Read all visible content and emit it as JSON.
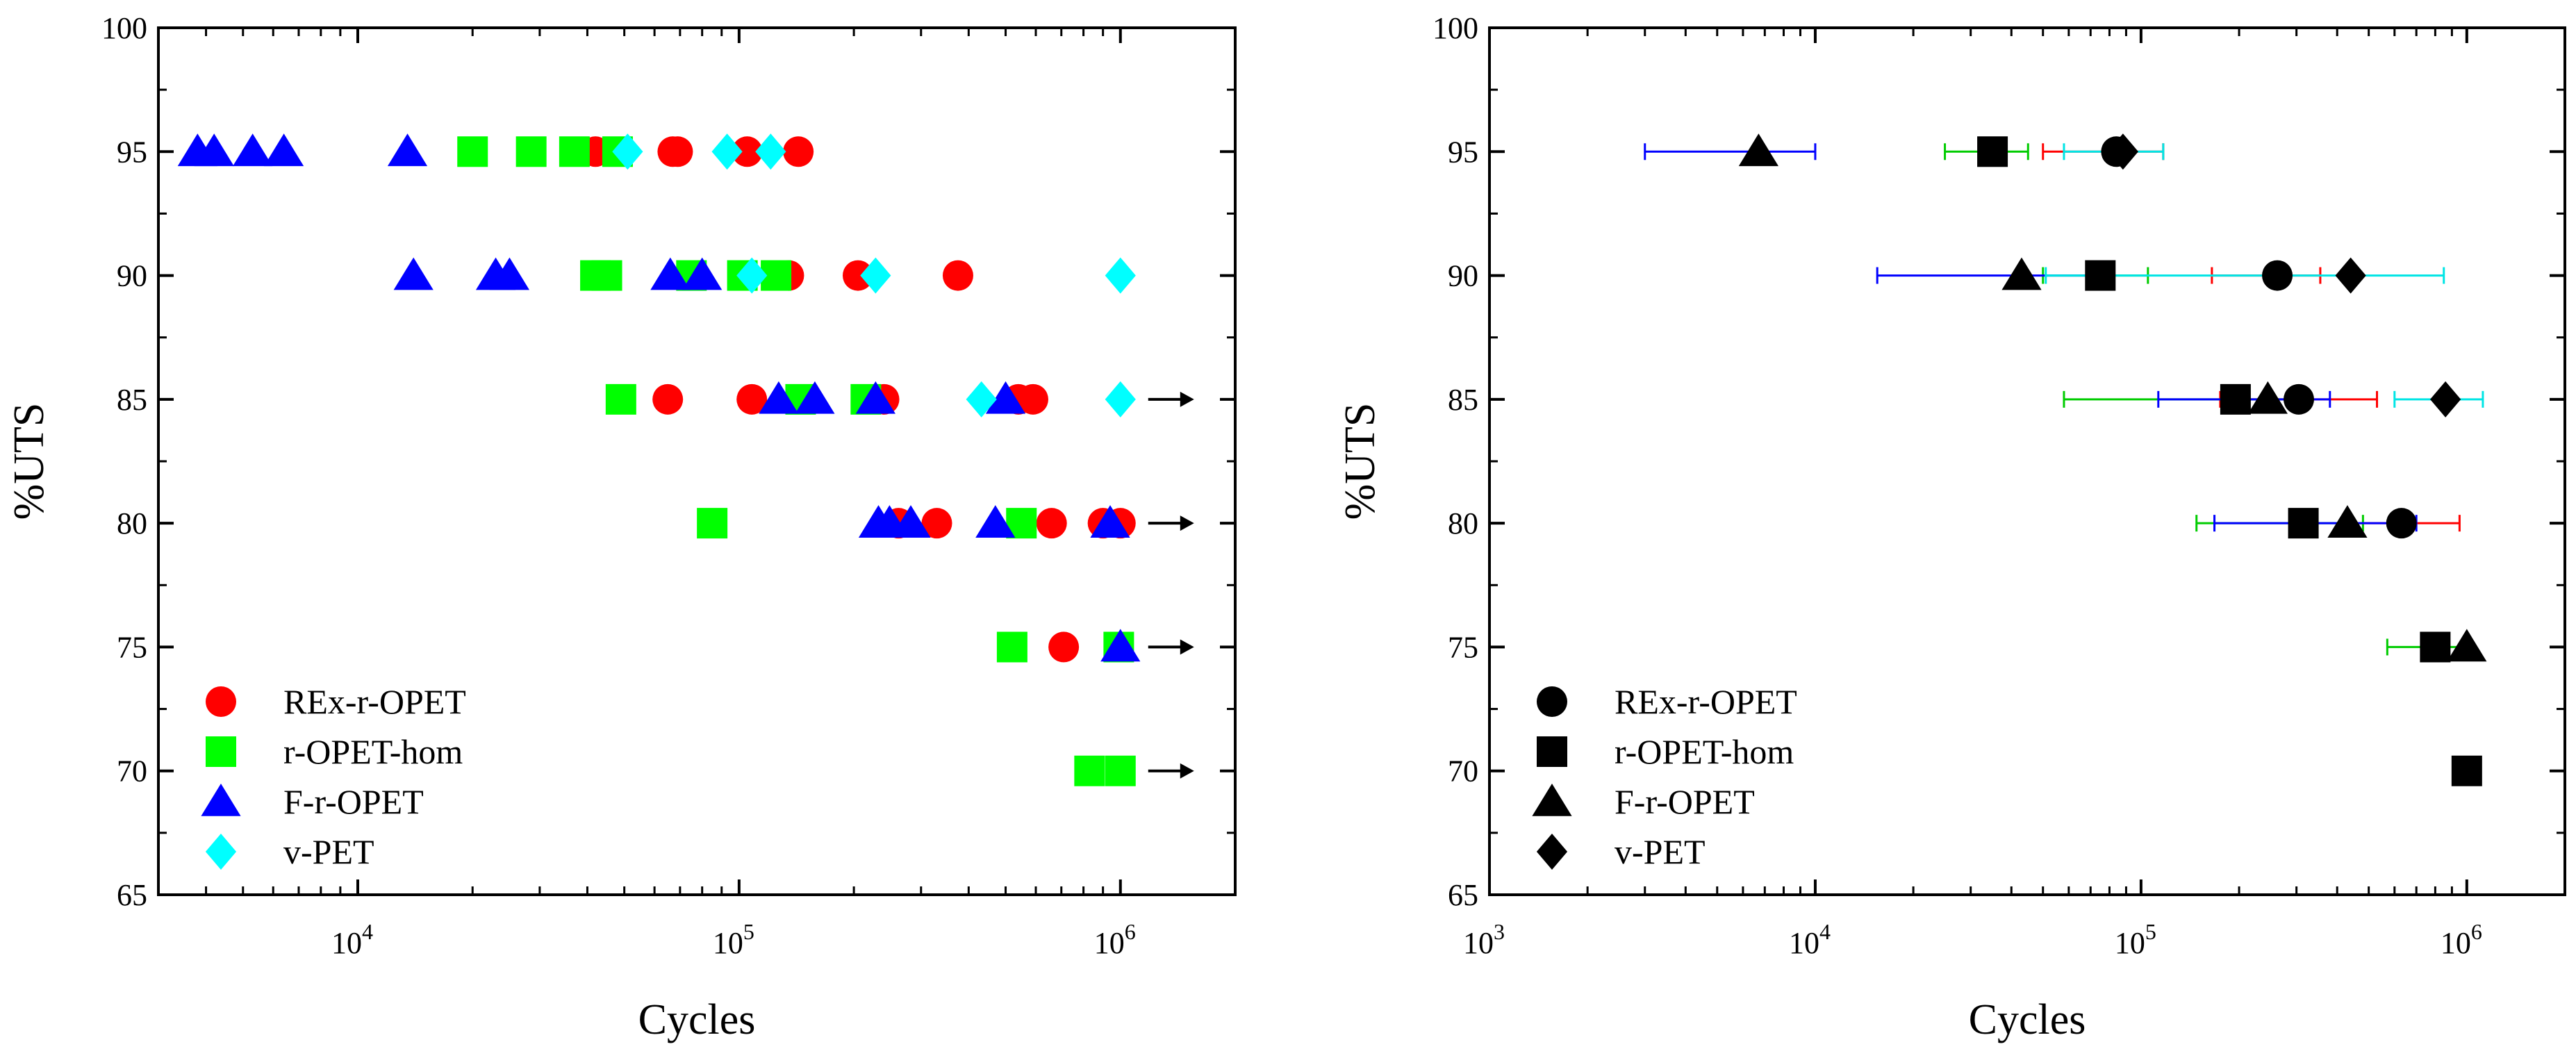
{
  "chart_data": [
    {
      "type": "scatter",
      "panel": "left",
      "xlabel": "Cycles",
      "ylabel": "%UTS",
      "xscale": "log",
      "xlim": [
        3000,
        2000000
      ],
      "ylim": [
        65,
        100
      ],
      "yticks": [
        "65",
        "70",
        "75",
        "80",
        "85",
        "90",
        "95",
        "100"
      ],
      "xticks": [
        {
          "base": "10",
          "exp": "4",
          "value": 10000
        },
        {
          "base": "10",
          "exp": "5",
          "value": 100000
        },
        {
          "base": "10",
          "exp": "6",
          "value": 1000000
        }
      ],
      "runout_arrows_y": [
        85,
        80,
        75,
        70
      ],
      "legend_position": "lower-left",
      "series": [
        {
          "name": "REx-r-OPET",
          "marker": "circle",
          "color": "#ff0000",
          "points": [
            [
              42000,
              95
            ],
            [
              67000,
              95
            ],
            [
              69000,
              95
            ],
            [
              105000,
              95
            ],
            [
              143000,
              95
            ],
            [
              135000,
              90
            ],
            [
              205000,
              90
            ],
            [
              375000,
              90
            ],
            [
              65000,
              85
            ],
            [
              108000,
              85
            ],
            [
              240000,
              85
            ],
            [
              540000,
              85
            ],
            [
              590000,
              85
            ],
            [
              262000,
              80
            ],
            [
              330000,
              80
            ],
            [
              660000,
              80
            ],
            [
              900000,
              80
            ],
            [
              1000000,
              80
            ],
            [
              710000,
              75
            ]
          ]
        },
        {
          "name": "r-OPET-hom",
          "marker": "square",
          "color": "#00ff00",
          "points": [
            [
              20000,
              95
            ],
            [
              28500,
              95
            ],
            [
              37000,
              95
            ],
            [
              48000,
              95
            ],
            [
              42000,
              90
            ],
            [
              45000,
              90
            ],
            [
              75000,
              90
            ],
            [
              102000,
              90
            ],
            [
              125000,
              90
            ],
            [
              49000,
              85
            ],
            [
              145000,
              85
            ],
            [
              215000,
              85
            ],
            [
              85000,
              80
            ],
            [
              550000,
              80
            ],
            [
              520000,
              75
            ],
            [
              990000,
              75
            ],
            [
              830000,
              70
            ],
            [
              1000000,
              70
            ]
          ]
        },
        {
          "name": "F-r-OPET",
          "marker": "triangle",
          "color": "#0000ff",
          "points": [
            [
              3800,
              95
            ],
            [
              4200,
              95
            ],
            [
              5300,
              95
            ],
            [
              6400,
              95
            ],
            [
              13500,
              95
            ],
            [
              14000,
              90
            ],
            [
              23000,
              90
            ],
            [
              25000,
              90
            ],
            [
              66000,
              90
            ],
            [
              80000,
              90
            ],
            [
              127000,
              85
            ],
            [
              158000,
              85
            ],
            [
              228000,
              85
            ],
            [
              500000,
              85
            ],
            [
              232000,
              80
            ],
            [
              248000,
              80
            ],
            [
              282000,
              80
            ],
            [
              470000,
              80
            ],
            [
              940000,
              80
            ],
            [
              1000000,
              75
            ]
          ]
        },
        {
          "name": "v-PET",
          "marker": "diamond",
          "color": "#00ffff",
          "points": [
            [
              51000,
              95
            ],
            [
              93000,
              95
            ],
            [
              121000,
              95
            ],
            [
              108000,
              90
            ],
            [
              228000,
              90
            ],
            [
              1000000,
              90
            ],
            [
              432000,
              85
            ],
            [
              1000000,
              85
            ]
          ]
        }
      ]
    },
    {
      "type": "scatter",
      "panel": "right",
      "xlabel": "Cycles",
      "ylabel": "%UTS",
      "xscale": "log",
      "xlim": [
        1000,
        2000000
      ],
      "ylim": [
        65,
        100
      ],
      "yticks": [
        "65",
        "70",
        "75",
        "80",
        "85",
        "90",
        "95",
        "100"
      ],
      "xticks": [
        {
          "base": "10",
          "exp": "3",
          "value": 1000
        },
        {
          "base": "10",
          "exp": "4",
          "value": 10000
        },
        {
          "base": "10",
          "exp": "5",
          "value": 100000
        },
        {
          "base": "10",
          "exp": "6",
          "value": 1000000
        }
      ],
      "legend_position": "lower-left",
      "series": [
        {
          "name": "REx-r-OPET",
          "marker": "circle",
          "color": "#000000",
          "error_color": "#ff0000",
          "points": [
            [
              84000,
              95,
              50000,
              117000
            ],
            [
              262000,
              90,
              165000,
              355000
            ],
            [
              305000,
              85,
              175000,
              530000
            ],
            [
              630000,
              80,
              430000,
              950000
            ]
          ]
        },
        {
          "name": "r-OPET-hom",
          "marker": "square",
          "color": "#000000",
          "error_color": "#00cc00",
          "points": [
            [
              35000,
              95,
              25000,
              45000
            ],
            [
              75000,
              90,
              50000,
              105000
            ],
            [
              195000,
              85,
              58000,
              330000
            ],
            [
              315000,
              80,
              148000,
              480000
            ],
            [
              800000,
              75,
              570000,
              1000000
            ],
            [
              1000000,
              70,
              null,
              null
            ]
          ]
        },
        {
          "name": "F-r-OPET",
          "marker": "triangle",
          "color": "#000000",
          "error_color": "#0000ff",
          "points": [
            [
              6700,
              95,
              3000,
              10000
            ],
            [
              43000,
              90,
              15500,
              70000
            ],
            [
              245000,
              85,
              113000,
              380000
            ],
            [
              430000,
              80,
              168000,
              700000
            ],
            [
              1000000,
              75,
              null,
              null
            ]
          ]
        },
        {
          "name": "v-PET",
          "marker": "diamond",
          "color": "#000000",
          "error_color": "#00e5e5",
          "points": [
            [
              88000,
              95,
              58000,
              117000
            ],
            [
              440000,
              90,
              51000,
              850000
            ],
            [
              860000,
              85,
              600000,
              1120000
            ]
          ]
        }
      ]
    }
  ]
}
